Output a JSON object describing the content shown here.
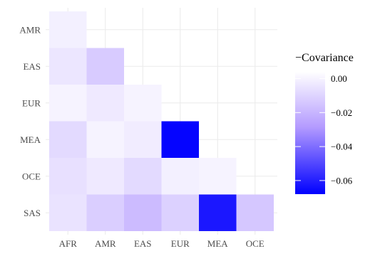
{
  "chart_data": {
    "type": "heatmap",
    "title": "",
    "xlabel": "",
    "ylabel": "",
    "x_categories": [
      "AFR",
      "AMR",
      "EAS",
      "EUR",
      "MEA",
      "OCE"
    ],
    "y_categories": [
      "AMR",
      "EAS",
      "EUR",
      "MEA",
      "OCE",
      "SAS"
    ],
    "grid": true,
    "cells": [
      {
        "x": "AFR",
        "y": "AMR",
        "value": -0.001
      },
      {
        "x": "AFR",
        "y": "EAS",
        "value": -0.004
      },
      {
        "x": "AMR",
        "y": "EAS",
        "value": -0.013
      },
      {
        "x": "AFR",
        "y": "EUR",
        "value": 0.0
      },
      {
        "x": "AMR",
        "y": "EUR",
        "value": -0.003
      },
      {
        "x": "EAS",
        "y": "EUR",
        "value": 0.0
      },
      {
        "x": "AFR",
        "y": "MEA",
        "value": -0.008
      },
      {
        "x": "AMR",
        "y": "MEA",
        "value": 0.0
      },
      {
        "x": "EAS",
        "y": "MEA",
        "value": -0.002
      },
      {
        "x": "EUR",
        "y": "MEA",
        "value": -0.067
      },
      {
        "x": "AFR",
        "y": "OCE",
        "value": -0.006
      },
      {
        "x": "AMR",
        "y": "OCE",
        "value": -0.003
      },
      {
        "x": "EAS",
        "y": "OCE",
        "value": -0.008
      },
      {
        "x": "EUR",
        "y": "OCE",
        "value": -0.001
      },
      {
        "x": "MEA",
        "y": "OCE",
        "value": 0.0
      },
      {
        "x": "AFR",
        "y": "SAS",
        "value": -0.005
      },
      {
        "x": "AMR",
        "y": "SAS",
        "value": -0.012
      },
      {
        "x": "EAS",
        "y": "SAS",
        "value": -0.018
      },
      {
        "x": "EUR",
        "y": "SAS",
        "value": -0.011
      },
      {
        "x": "MEA",
        "y": "SAS",
        "value": -0.062
      },
      {
        "x": "OCE",
        "y": "SAS",
        "value": -0.014
      }
    ],
    "legend": {
      "title": "−Covariance",
      "placement": "right",
      "range": [
        -0.068,
        0.004
      ],
      "ticks": [
        {
          "value": 0.0,
          "label": "0.00"
        },
        {
          "value": -0.02,
          "label": "−0.02"
        },
        {
          "value": -0.04,
          "label": "−0.04"
        },
        {
          "value": -0.06,
          "label": "−0.06"
        }
      ]
    },
    "colors": {
      "high": "#ffffff",
      "low": "#0000ff",
      "mid_tint": "#b49bff",
      "grid": "#ebebeb",
      "tick_text": "#4d4d4d"
    }
  }
}
